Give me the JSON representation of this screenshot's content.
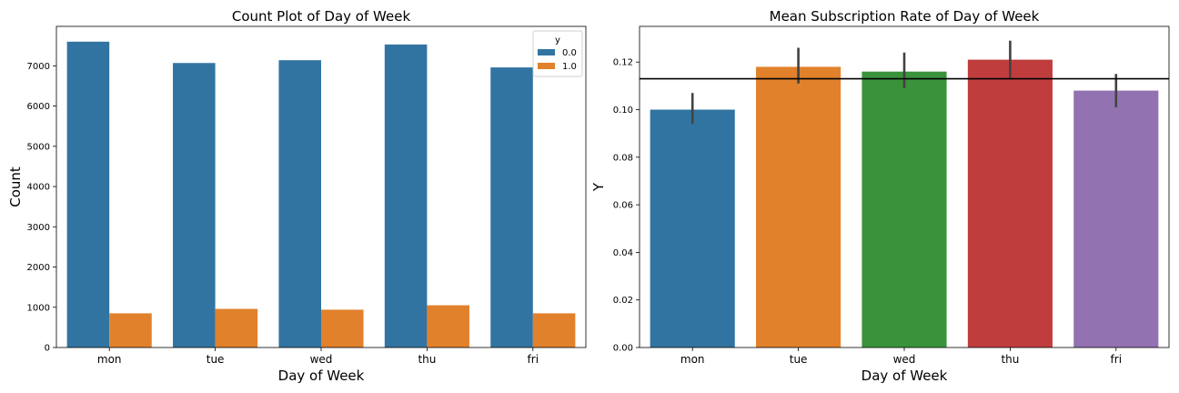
{
  "chart_data": [
    {
      "type": "bar",
      "title": "Count Plot of Day of Week",
      "xlabel": "Day of Week",
      "ylabel": "Count",
      "categories": [
        "mon",
        "tue",
        "wed",
        "thu",
        "fri"
      ],
      "ylim": [
        0,
        7980
      ],
      "yticks": [
        0,
        1000,
        2000,
        3000,
        4000,
        5000,
        6000,
        7000
      ],
      "legend": {
        "title": "y",
        "position": "top-right"
      },
      "series": [
        {
          "name": "0.0",
          "color": "#3274a1",
          "values": [
            7600,
            7070,
            7140,
            7530,
            6960
          ]
        },
        {
          "name": "1.0",
          "color": "#e1812c",
          "values": [
            850,
            960,
            940,
            1050,
            850
          ]
        }
      ]
    },
    {
      "type": "bar",
      "title": "Mean Subscription Rate of Day of Week",
      "xlabel": "Day of Week",
      "ylabel": "Y",
      "categories": [
        "mon",
        "tue",
        "wed",
        "thu",
        "fri"
      ],
      "ylim": [
        0,
        0.135
      ],
      "yticks": [
        "0.00",
        "0.02",
        "0.04",
        "0.06",
        "0.08",
        "0.10",
        "0.12"
      ],
      "values": [
        0.1,
        0.118,
        0.116,
        0.121,
        0.108
      ],
      "error_low": [
        0.094,
        0.111,
        0.109,
        0.113,
        0.101
      ],
      "error_high": [
        0.107,
        0.126,
        0.124,
        0.129,
        0.115
      ],
      "colors": [
        "#3274a1",
        "#e1812c",
        "#3a923a",
        "#c03d3e",
        "#9372b2"
      ],
      "hline": 0.113
    }
  ]
}
